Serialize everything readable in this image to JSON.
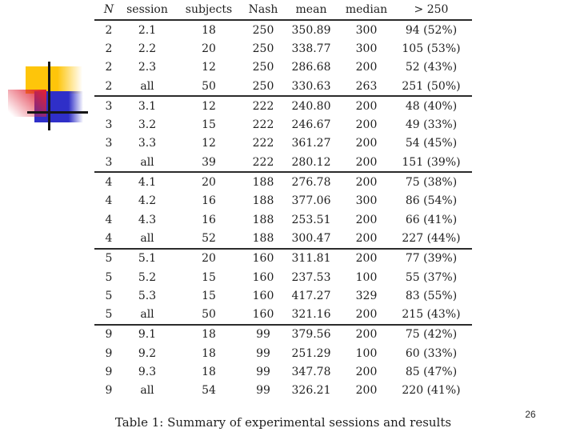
{
  "slide": {
    "caption": "Table 1: Summary of experimental sessions and results",
    "page_number": "26"
  },
  "decoration": {
    "yellow": "#fec50a",
    "red": "#df2136",
    "blue": "#2f2fc8",
    "line": "#161616"
  },
  "table": {
    "headers": [
      "N",
      "session",
      "subjects",
      "Nash",
      "mean",
      "median",
      "> 250"
    ],
    "group_size": 4,
    "rows": [
      [
        "2",
        "2.1",
        "18",
        "250",
        "350.89",
        "300",
        "94 (52%)"
      ],
      [
        "2",
        "2.2",
        "20",
        "250",
        "338.77",
        "300",
        "105 (53%)"
      ],
      [
        "2",
        "2.3",
        "12",
        "250",
        "286.68",
        "200",
        "52 (43%)"
      ],
      [
        "2",
        "all",
        "50",
        "250",
        "330.63",
        "263",
        "251 (50%)"
      ],
      [
        "3",
        "3.1",
        "12",
        "222",
        "240.80",
        "200",
        "48 (40%)"
      ],
      [
        "3",
        "3.2",
        "15",
        "222",
        "246.67",
        "200",
        "49 (33%)"
      ],
      [
        "3",
        "3.3",
        "12",
        "222",
        "361.27",
        "200",
        "54 (45%)"
      ],
      [
        "3",
        "all",
        "39",
        "222",
        "280.12",
        "200",
        "151 (39%)"
      ],
      [
        "4",
        "4.1",
        "20",
        "188",
        "276.78",
        "200",
        "75 (38%)"
      ],
      [
        "4",
        "4.2",
        "16",
        "188",
        "377.06",
        "300",
        "86 (54%)"
      ],
      [
        "4",
        "4.3",
        "16",
        "188",
        "253.51",
        "200",
        "66 (41%)"
      ],
      [
        "4",
        "all",
        "52",
        "188",
        "300.47",
        "200",
        "227 (44%)"
      ],
      [
        "5",
        "5.1",
        "20",
        "160",
        "311.81",
        "200",
        "77 (39%)"
      ],
      [
        "5",
        "5.2",
        "15",
        "160",
        "237.53",
        "100",
        "55 (37%)"
      ],
      [
        "5",
        "5.3",
        "15",
        "160",
        "417.27",
        "329",
        "83 (55%)"
      ],
      [
        "5",
        "all",
        "50",
        "160",
        "321.16",
        "200",
        "215 (43%)"
      ],
      [
        "9",
        "9.1",
        "18",
        "99",
        "379.56",
        "200",
        "75 (42%)"
      ],
      [
        "9",
        "9.2",
        "18",
        "99",
        "251.29",
        "100",
        "60 (33%)"
      ],
      [
        "9",
        "9.3",
        "18",
        "99",
        "347.78",
        "200",
        "85 (47%)"
      ],
      [
        "9",
        "all",
        "54",
        "99",
        "326.21",
        "200",
        "220 (41%)"
      ]
    ]
  }
}
